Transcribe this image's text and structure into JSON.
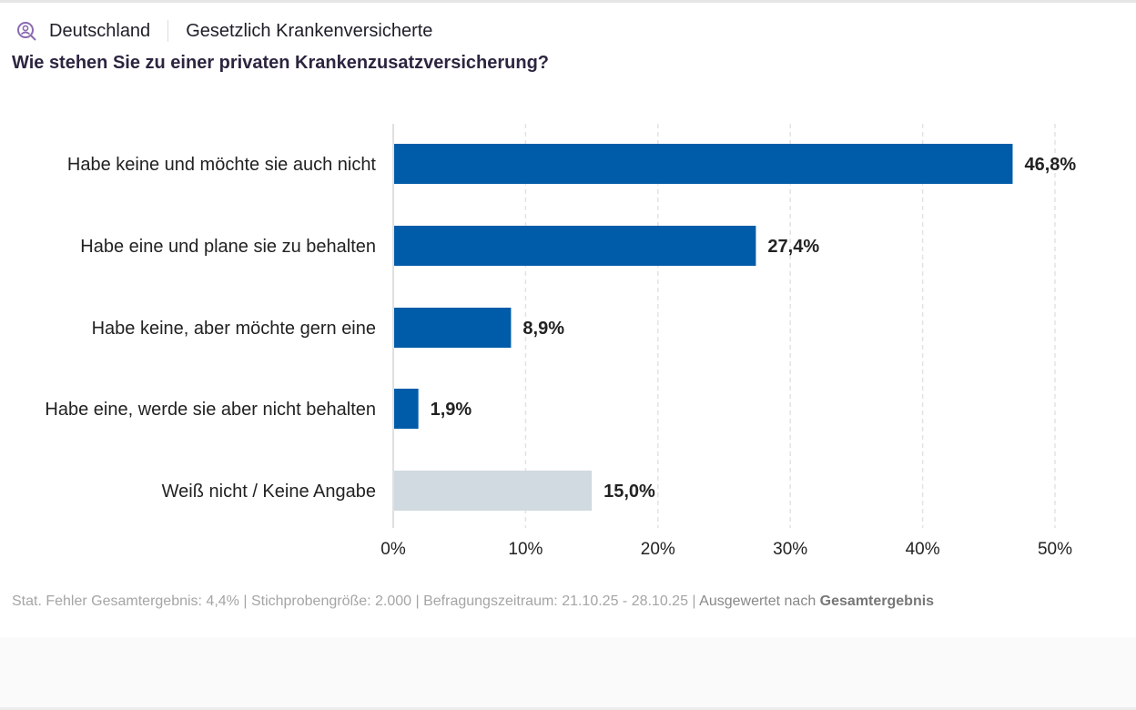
{
  "header": {
    "country": "Deutschland",
    "segment": "Gesetzlich Krankenversicherte",
    "icon": "user-search-icon"
  },
  "question": "Wie stehen Sie zu einer privaten Krankenzusatzversicherung?",
  "chart_data": {
    "type": "bar",
    "orientation": "horizontal",
    "categories": [
      "Habe keine und möchte sie auch nicht",
      "Habe eine und plane sie zu behalten",
      "Habe keine, aber möchte gern eine",
      "Habe eine, werde sie aber nicht behalten",
      "Weiß nicht / Keine Angabe"
    ],
    "values": [
      46.8,
      27.4,
      8.9,
      1.9,
      15.0
    ],
    "data_labels": [
      "46,8%",
      "27,4%",
      "8,9%",
      "1,9%",
      "15,0%"
    ],
    "colors": [
      "#005ca9",
      "#005ca9",
      "#005ca9",
      "#005ca9",
      "#d0dae0"
    ],
    "xlim": [
      0,
      50
    ],
    "xticks": [
      0,
      10,
      20,
      30,
      40,
      50
    ],
    "xtick_labels": [
      "0%",
      "10%",
      "20%",
      "30%",
      "40%",
      "50%"
    ],
    "grid": "vertical dashed"
  },
  "footer": {
    "stats": "Stat. Fehler Gesamtergebnis: 4,4% | Stichprobengröße: 2.000 | Befragungszeitraum: 21.10.25 - 28.10.25 |",
    "evaluated_prefix": "Ausgewertet nach",
    "evaluated_value": "Gesamtergebnis"
  }
}
